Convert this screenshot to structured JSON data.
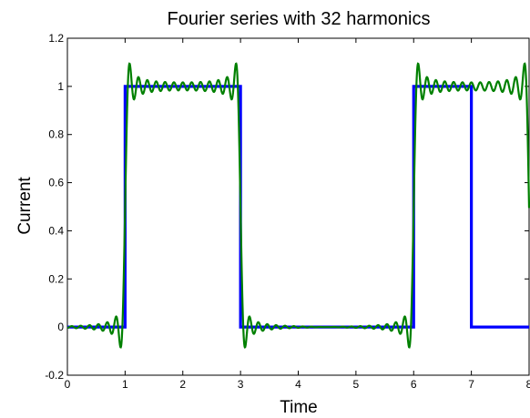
{
  "chart_data": {
    "type": "line",
    "title": "Fourier series with 32 harmonics",
    "xlabel": "Time",
    "ylabel": "Current",
    "xlim": [
      0,
      8
    ],
    "ylim": [
      -0.2,
      1.2
    ],
    "xticks": [
      "0",
      "1",
      "2",
      "3",
      "4",
      "5",
      "6",
      "7",
      "8"
    ],
    "yticks": [
      "-0.2",
      "0",
      "0.2",
      "0.4",
      "0.6",
      "0.8",
      "1",
      "1.2"
    ],
    "grid": false,
    "series": [
      {
        "color": "#0000ff",
        "x": [
          0,
          1,
          1,
          3,
          3,
          6,
          6,
          7,
          7,
          8
        ],
        "y": [
          0,
          0,
          1,
          1,
          0,
          0,
          1,
          1,
          0,
          0
        ]
      },
      {
        "color": "#008000",
        "description_of_shape": "32-harmonic Fourier approximation of the same pulse train",
        "pulse_starts": [
          1,
          6
        ],
        "pulse_ends": [
          3,
          7
        ],
        "period": 5,
        "harmonics": 32
      }
    ]
  }
}
